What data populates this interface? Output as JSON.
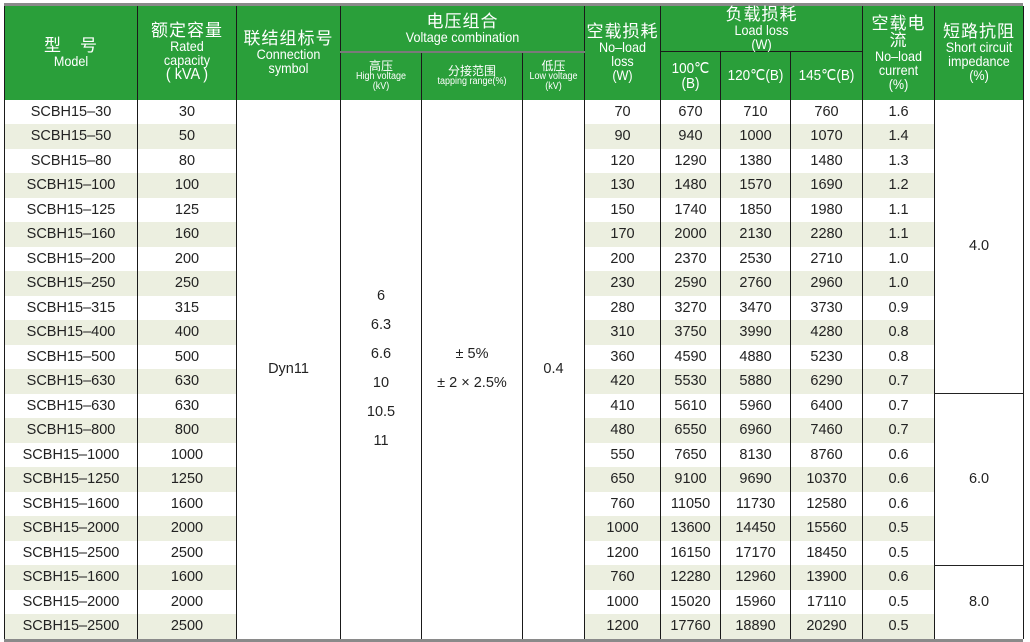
{
  "header": {
    "model": {
      "zh": "型　号",
      "en": "Model"
    },
    "capacity": {
      "zh": "额定容量",
      "en1": "Rated",
      "en2": "capacity",
      "unit": "( kVA )"
    },
    "connection": {
      "zh": "联结组标号",
      "en1": "Connection",
      "en2": "symbol"
    },
    "voltage": {
      "zh": "电压组合",
      "en": "Voltage combination",
      "hv": {
        "zh": "高压",
        "en": "High voltage",
        "unit": "(kV)"
      },
      "tap": {
        "zh": "分接范围",
        "en": "tapping range(%)"
      },
      "lv": {
        "zh": "低压",
        "en": "Low voltage",
        "unit": "(kV)"
      }
    },
    "noload_loss": {
      "zh": "空载损耗",
      "en1": "No–load",
      "en2": "loss",
      "unit": "(W)"
    },
    "load_loss": {
      "zh": "负载损耗",
      "en": "Load loss",
      "unit": "(W)",
      "t100": "100℃(B)",
      "t120": "120℃(B)",
      "t145": "145℃(B)"
    },
    "noload_current": {
      "zh": "空载电流",
      "en1": "No–load",
      "en2": "current",
      "unit": "(%)"
    },
    "impedance": {
      "zh": "短路抗阻",
      "en1": "Short circuit",
      "en2": "impedance",
      "unit": "(%)"
    }
  },
  "merged": {
    "connection": "Dyn11",
    "hv": [
      "6",
      "6.3",
      "6.6",
      "10",
      "10.5",
      "11"
    ],
    "tap1": "± 5%",
    "tap2": "± 2 × 2.5%",
    "lv": "0.4",
    "imp": [
      "4.0",
      "6.0",
      "8.0"
    ]
  },
  "rows": [
    [
      "SCBH15–30",
      "30",
      "70",
      "670",
      "710",
      "760",
      "1.6"
    ],
    [
      "SCBH15–50",
      "50",
      "90",
      "940",
      "1000",
      "1070",
      "1.4"
    ],
    [
      "SCBH15–80",
      "80",
      "120",
      "1290",
      "1380",
      "1480",
      "1.3"
    ],
    [
      "SCBH15–100",
      "100",
      "130",
      "1480",
      "1570",
      "1690",
      "1.2"
    ],
    [
      "SCBH15–125",
      "125",
      "150",
      "1740",
      "1850",
      "1980",
      "1.1"
    ],
    [
      "SCBH15–160",
      "160",
      "170",
      "2000",
      "2130",
      "2280",
      "1.1"
    ],
    [
      "SCBH15–200",
      "200",
      "200",
      "2370",
      "2530",
      "2710",
      "1.0"
    ],
    [
      "SCBH15–250",
      "250",
      "230",
      "2590",
      "2760",
      "2960",
      "1.0"
    ],
    [
      "SCBH15–315",
      "315",
      "280",
      "3270",
      "3470",
      "3730",
      "0.9"
    ],
    [
      "SCBH15–400",
      "400",
      "310",
      "3750",
      "3990",
      "4280",
      "0.8"
    ],
    [
      "SCBH15–500",
      "500",
      "360",
      "4590",
      "4880",
      "5230",
      "0.8"
    ],
    [
      "SCBH15–630",
      "630",
      "420",
      "5530",
      "5880",
      "6290",
      "0.7"
    ],
    [
      "SCBH15–630",
      "630",
      "410",
      "5610",
      "5960",
      "6400",
      "0.7"
    ],
    [
      "SCBH15–800",
      "800",
      "480",
      "6550",
      "6960",
      "7460",
      "0.7"
    ],
    [
      "SCBH15–1000",
      "1000",
      "550",
      "7650",
      "8130",
      "8760",
      "0.6"
    ],
    [
      "SCBH15–1250",
      "1250",
      "650",
      "9100",
      "9690",
      "10370",
      "0.6"
    ],
    [
      "SCBH15–1600",
      "1600",
      "760",
      "11050",
      "11730",
      "12580",
      "0.6"
    ],
    [
      "SCBH15–2000",
      "2000",
      "1000",
      "13600",
      "14450",
      "15560",
      "0.5"
    ],
    [
      "SCBH15–2500",
      "2500",
      "1200",
      "16150",
      "17170",
      "18450",
      "0.5"
    ],
    [
      "SCBH15–1600",
      "1600",
      "760",
      "12280",
      "12960",
      "13900",
      "0.6"
    ],
    [
      "SCBH15–2000",
      "2000",
      "1000",
      "15020",
      "15960",
      "17110",
      "0.5"
    ],
    [
      "SCBH15–2500",
      "2500",
      "1200",
      "17760",
      "18890",
      "20290",
      "0.5"
    ]
  ],
  "colors": {
    "header": "#2a9f3a",
    "stripe": "#ecefe0",
    "rule": "#8a8a8a"
  }
}
